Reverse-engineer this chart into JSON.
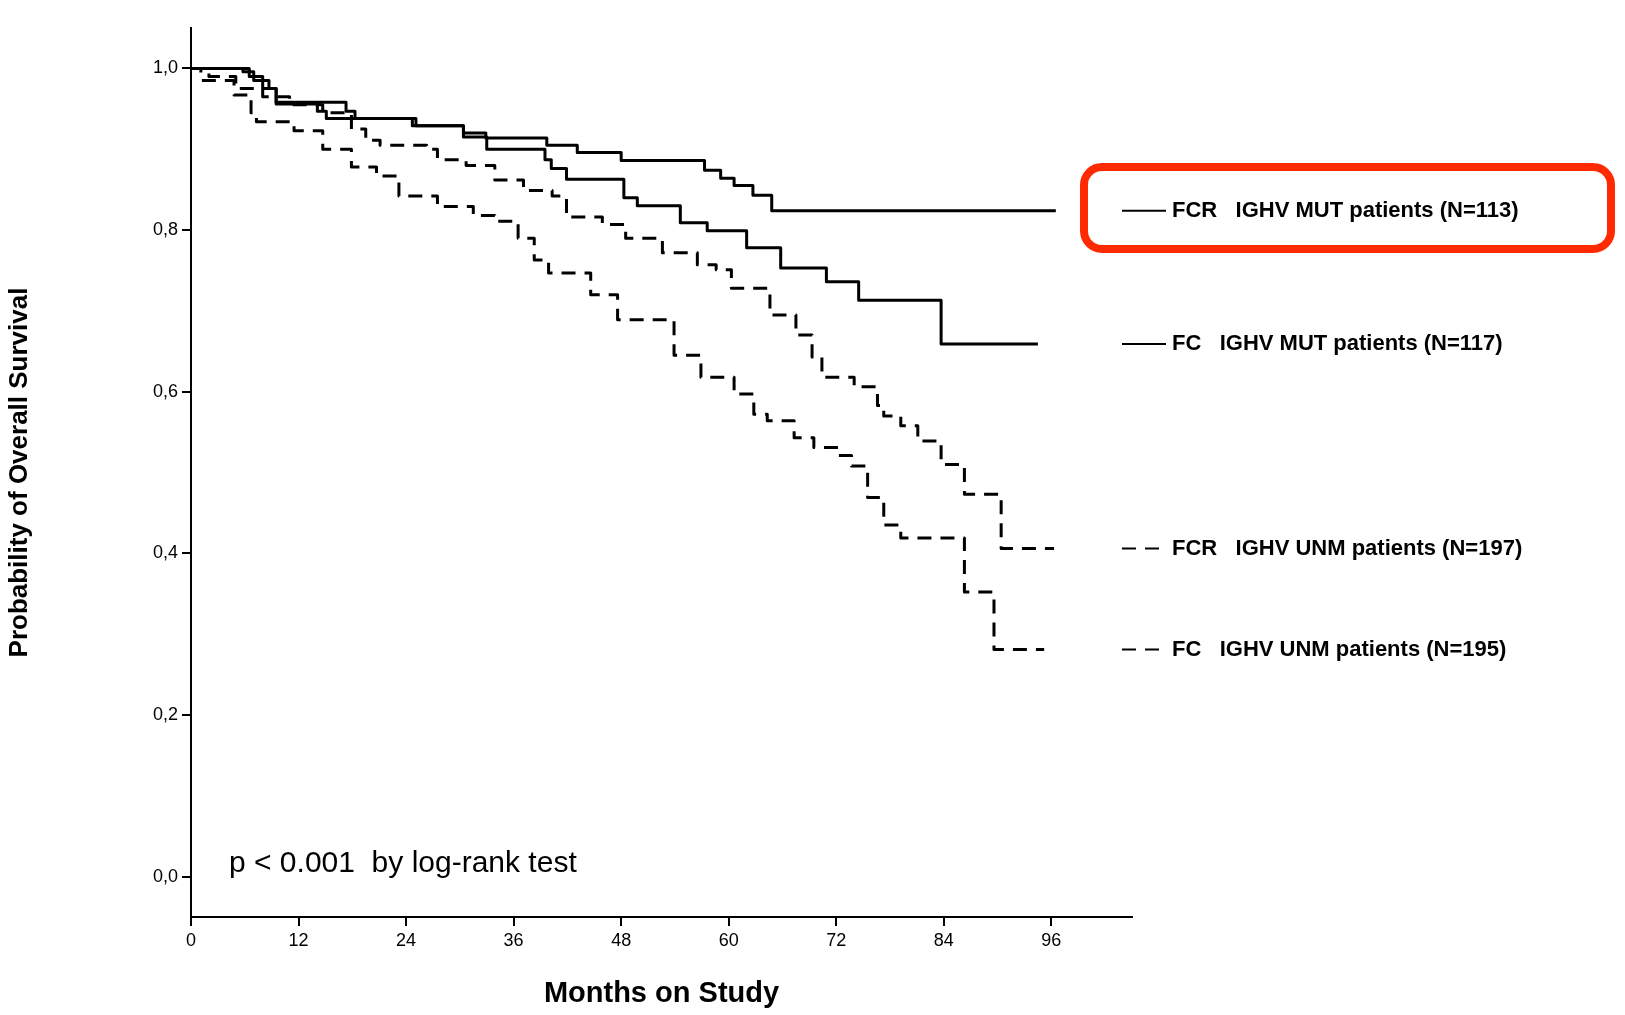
{
  "chart_data": {
    "type": "step",
    "xlabel": "Months on Study",
    "ylabel": "Probability of Overall Survival",
    "xlim": [
      0,
      105
    ],
    "xticks": [
      0,
      12,
      24,
      36,
      48,
      60,
      72,
      84,
      96
    ],
    "ylim": [
      -0.05,
      1.05
    ],
    "yticks": [
      {
        "value": 0,
        "label": "0,0"
      },
      {
        "value": 0.2,
        "label": "0,2"
      },
      {
        "value": 0.4,
        "label": "0,4"
      },
      {
        "value": 0.6,
        "label": "0,6"
      },
      {
        "value": 0.8,
        "label": "0,8"
      },
      {
        "value": 1,
        "label": "1,0"
      }
    ],
    "legend": "right",
    "marker": "none",
    "annotations": [
      "p < 0.001  by log-rank test"
    ],
    "series": [
      {
        "name": "FCR   IGHV MUT patients (N=113)",
        "color": "#000000",
        "line_style": "solid",
        "x": [
          0,
          5.8,
          7.0,
          8.7,
          9.5,
          17.3,
          18.3,
          25.1,
          30.4,
          32.9,
          39.7,
          43.1,
          48.0,
          57.3,
          59.1,
          60.6,
          62.7,
          64.8,
          96.5
        ],
        "values": [
          1,
          0.996,
          0.985,
          0.975,
          0.958,
          0.947,
          0.938,
          0.929,
          0.92,
          0.914,
          0.905,
          0.896,
          0.886,
          0.874,
          0.864,
          0.855,
          0.843,
          0.824,
          0.824
        ]
      },
      {
        "name": "FC   IGHV MUT patients (N=117)",
        "color": "#000000",
        "line_style": "solid",
        "x": [
          0,
          6.5,
          8.0,
          9.5,
          14.1,
          15.1,
          24.7,
          30.4,
          33.0,
          39.5,
          40.2,
          41.9,
          48.3,
          49.8,
          54.6,
          57.6,
          62.0,
          65.8,
          70.9,
          74.5,
          83.7,
          94.5
        ],
        "values": [
          1,
          0.99,
          0.975,
          0.956,
          0.947,
          0.938,
          0.929,
          0.915,
          0.9,
          0.887,
          0.876,
          0.863,
          0.84,
          0.83,
          0.809,
          0.799,
          0.778,
          0.753,
          0.736,
          0.713,
          0.659,
          0.659
        ]
      },
      {
        "name": "FCR   IGHV UNM patients (N=197)",
        "color": "#000000",
        "line_style": "dashed",
        "x": [
          0,
          2,
          5,
          8,
          11,
          14.7,
          17.9,
          19.5,
          21.1,
          26.3,
          27.5,
          30.7,
          33.9,
          37.1,
          40.3,
          41.9,
          45.9,
          48.5,
          52.6,
          56.5,
          58.6,
          60.3,
          64.6,
          67.5,
          69.3,
          70.4,
          74,
          76.6,
          77.3,
          79.2,
          81.1,
          83.7,
          86.3,
          90.4,
          96.3
        ],
        "values": [
          1,
          0.99,
          0.975,
          0.965,
          0.955,
          0.945,
          0.925,
          0.911,
          0.905,
          0.9,
          0.887,
          0.88,
          0.862,
          0.849,
          0.842,
          0.816,
          0.807,
          0.79,
          0.772,
          0.757,
          0.751,
          0.728,
          0.695,
          0.67,
          0.643,
          0.618,
          0.606,
          0.583,
          0.57,
          0.558,
          0.539,
          0.51,
          0.473,
          0.406,
          0.406
        ]
      },
      {
        "name": "FC   IGHV UNM patients (N=195)",
        "color": "#000000",
        "line_style": "dashed",
        "x": [
          0,
          1.1,
          4.8,
          6.7,
          7.3,
          11.5,
          14.7,
          17.9,
          20.7,
          23.2,
          27.5,
          31.5,
          33.9,
          36.5,
          38.3,
          39.9,
          44.6,
          47.6,
          53.9,
          56.9,
          60.6,
          62.8,
          64.3,
          67.3,
          69.5,
          72.2,
          73.7,
          75.5,
          77.3,
          79.2,
          86.3,
          89.6,
          95.2
        ],
        "values": [
          1,
          0.985,
          0.967,
          0.945,
          0.934,
          0.923,
          0.9,
          0.878,
          0.867,
          0.842,
          0.829,
          0.818,
          0.811,
          0.79,
          0.763,
          0.747,
          0.72,
          0.689,
          0.645,
          0.618,
          0.597,
          0.572,
          0.564,
          0.543,
          0.531,
          0.521,
          0.508,
          0.469,
          0.435,
          0.419,
          0.352,
          0.281,
          0.281
        ]
      }
    ]
  }
}
